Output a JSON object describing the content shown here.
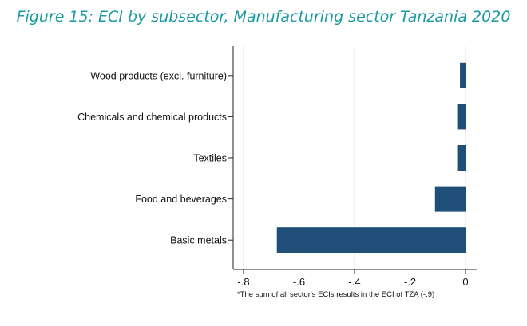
{
  "figure_title": "Figure 15: ECI by subsector, Manufacturing sector Tanzania 2020",
  "chart_data": {
    "type": "bar",
    "orientation": "horizontal",
    "title": "",
    "xlabel": "",
    "ylabel": "",
    "categories": [
      "Wood products (excl. furniture)",
      "Chemicals and chemical products",
      "Textiles",
      "Food and beverages",
      "Basic metals"
    ],
    "values": [
      -0.02,
      -0.03,
      -0.03,
      -0.11,
      -0.68
    ],
    "xlim": [
      -0.82,
      0.02
    ],
    "xticks": [
      -0.8,
      -0.6,
      -0.4,
      -0.2,
      0
    ],
    "xtick_labels": [
      "-.8",
      "-.6",
      "-.4",
      "-.2",
      "0"
    ],
    "grid": "vertical",
    "bar_color": "#1f4e79",
    "note": "*The sum of all sector's ECIs results in the ECI of TZA (-.9)"
  }
}
